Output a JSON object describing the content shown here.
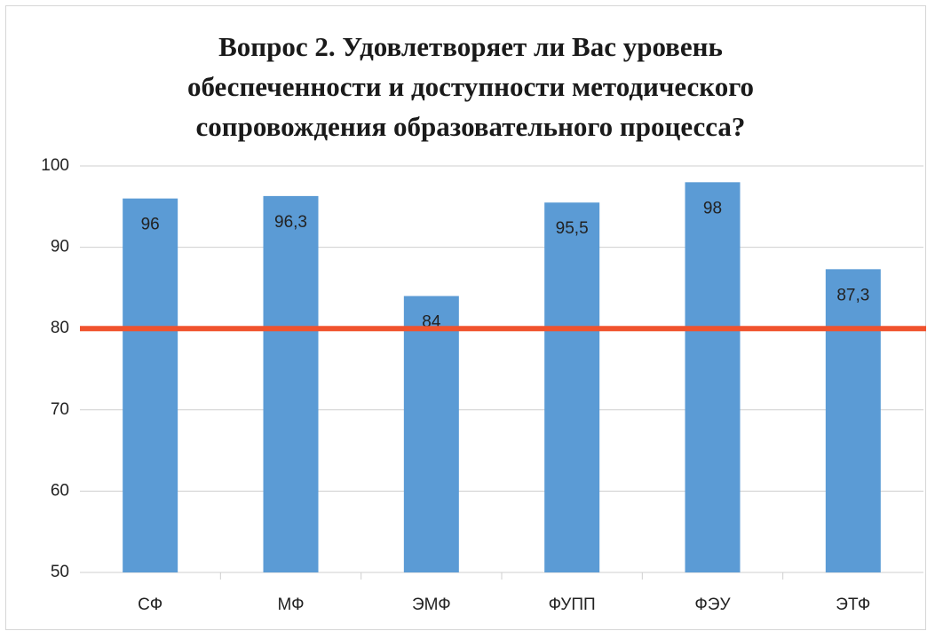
{
  "chart_data": {
    "type": "bar",
    "title": "Вопрос 2. Удовлетворяет ли Вас уровень обеспеченности и доступности методического сопровождения образовательного процесса?",
    "categories": [
      "СФ",
      "МФ",
      "ЭМФ",
      "ФУПП",
      "ФЭУ",
      "ЭТФ"
    ],
    "values": [
      96,
      96.3,
      84,
      95.5,
      98,
      87.3
    ],
    "value_labels": [
      "96",
      "96,3",
      "84",
      "95,5",
      "98",
      "87,3"
    ],
    "color": "#5b9bd5",
    "ylim": [
      50,
      100
    ],
    "yticks": [
      50,
      60,
      70,
      80,
      90,
      100
    ],
    "grid": true,
    "reference_line": {
      "value": 80,
      "color": "#f0532e"
    }
  }
}
